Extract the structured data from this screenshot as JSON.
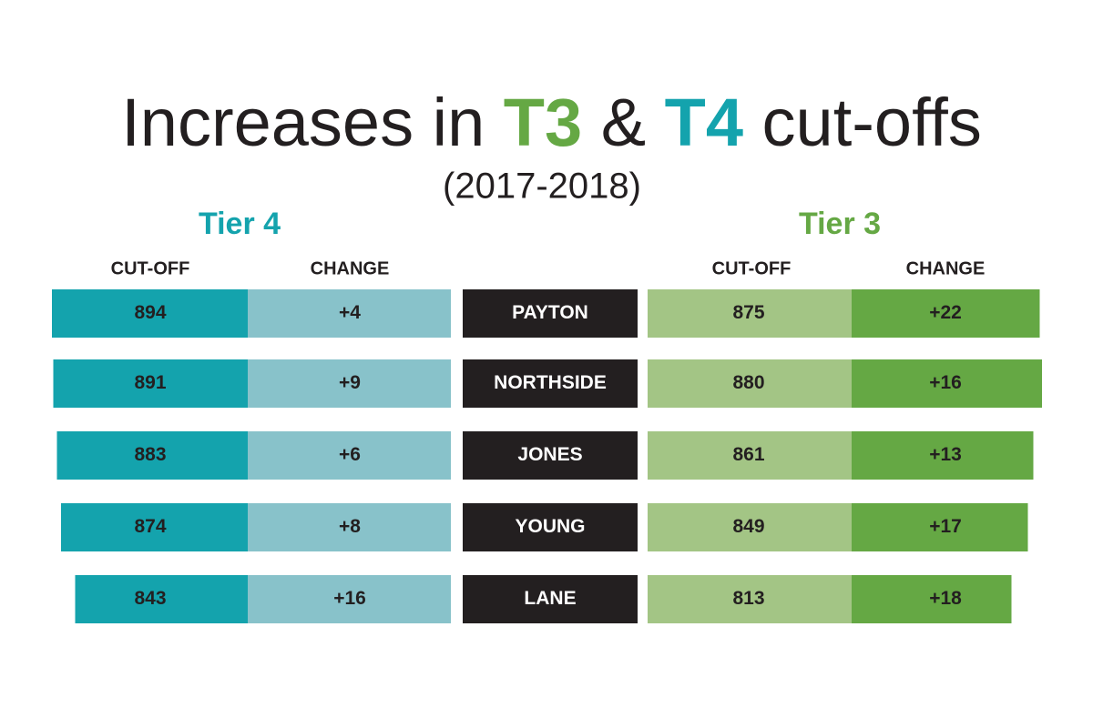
{
  "title": {
    "parts": [
      "Increases in ",
      "T3",
      " & ",
      "T4",
      " cut-offs"
    ]
  },
  "subtitle": "(2017-2018)",
  "tier4": {
    "heading": "Tier 4",
    "columns": [
      "CUT-OFF",
      "CHANGE"
    ],
    "rows": [
      {
        "cutoff": 894,
        "change": "+4"
      },
      {
        "cutoff": 891,
        "change": "+9"
      },
      {
        "cutoff": 883,
        "change": "+6"
      },
      {
        "cutoff": 874,
        "change": "+8"
      },
      {
        "cutoff": 843,
        "change": "+16"
      }
    ]
  },
  "schools": [
    "PAYTON",
    "NORTHSIDE",
    "JONES",
    "YOUNG",
    "LANE"
  ],
  "tier3": {
    "heading": "Tier 3",
    "columns": [
      "CUT-OFF",
      "CHANGE"
    ],
    "rows": [
      {
        "cutoff": 875,
        "change": "+22"
      },
      {
        "cutoff": 880,
        "change": "+16"
      },
      {
        "cutoff": 861,
        "change": "+13"
      },
      {
        "cutoff": 849,
        "change": "+17"
      },
      {
        "cutoff": 813,
        "change": "+18"
      }
    ]
  }
}
